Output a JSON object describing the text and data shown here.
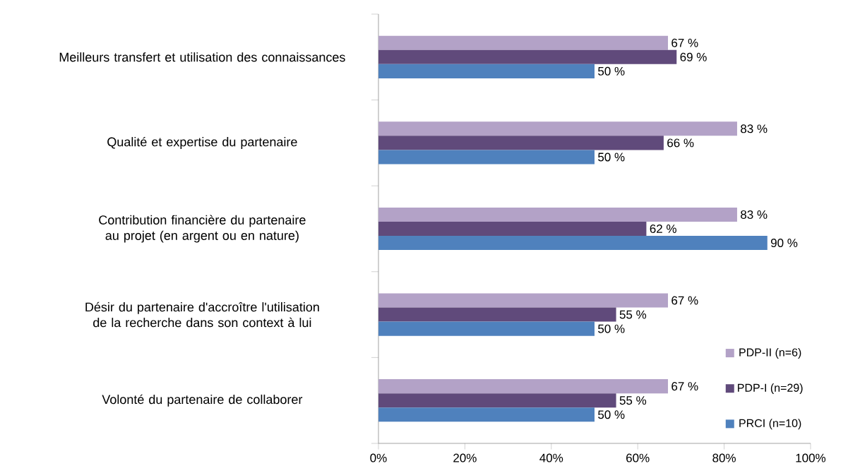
{
  "chart_data": {
    "type": "bar",
    "orientation": "horizontal",
    "categories": [
      "Meilleurs transfert et utilisation des connaissances",
      "Qualité et expertise du partenaire",
      "Contribution financière du partenaire au projet (en argent ou en nature)",
      "Désir du partenaire d'accroître l'utilisation de la recherche dans son context à lui",
      "Volonté du partenaire de collaborer"
    ],
    "series": [
      {
        "name": "PDP-II (n=6)",
        "color": "#b3a2c7",
        "values": [
          67,
          83,
          83,
          67,
          67
        ],
        "value_labels": [
          "67 %",
          "83 %",
          "83 %",
          "67 %",
          "67 %"
        ]
      },
      {
        "name": "PDP-I (n=29)",
        "color": "#604a7b",
        "values": [
          69,
          66,
          62,
          55,
          55
        ],
        "value_labels": [
          "69 %",
          "66 %",
          "62 %",
          "55 %",
          "55 %"
        ]
      },
      {
        "name": "PRCI (n=10)",
        "color": "#4f81bd",
        "values": [
          50,
          50,
          90,
          50,
          50
        ],
        "value_labels": [
          "50 %",
          "50 %",
          "90 %",
          "50 %",
          "50 %"
        ]
      }
    ],
    "xlim": [
      0,
      100
    ],
    "xticks": [
      {
        "value": 0,
        "label": "0%"
      },
      {
        "value": 20,
        "label": "20%"
      },
      {
        "value": 40,
        "label": "40%"
      },
      {
        "value": 60,
        "label": "60%"
      },
      {
        "value": 80,
        "label": "80%"
      },
      {
        "value": 100,
        "label": "100%"
      }
    ],
    "legend": "bottom right"
  }
}
